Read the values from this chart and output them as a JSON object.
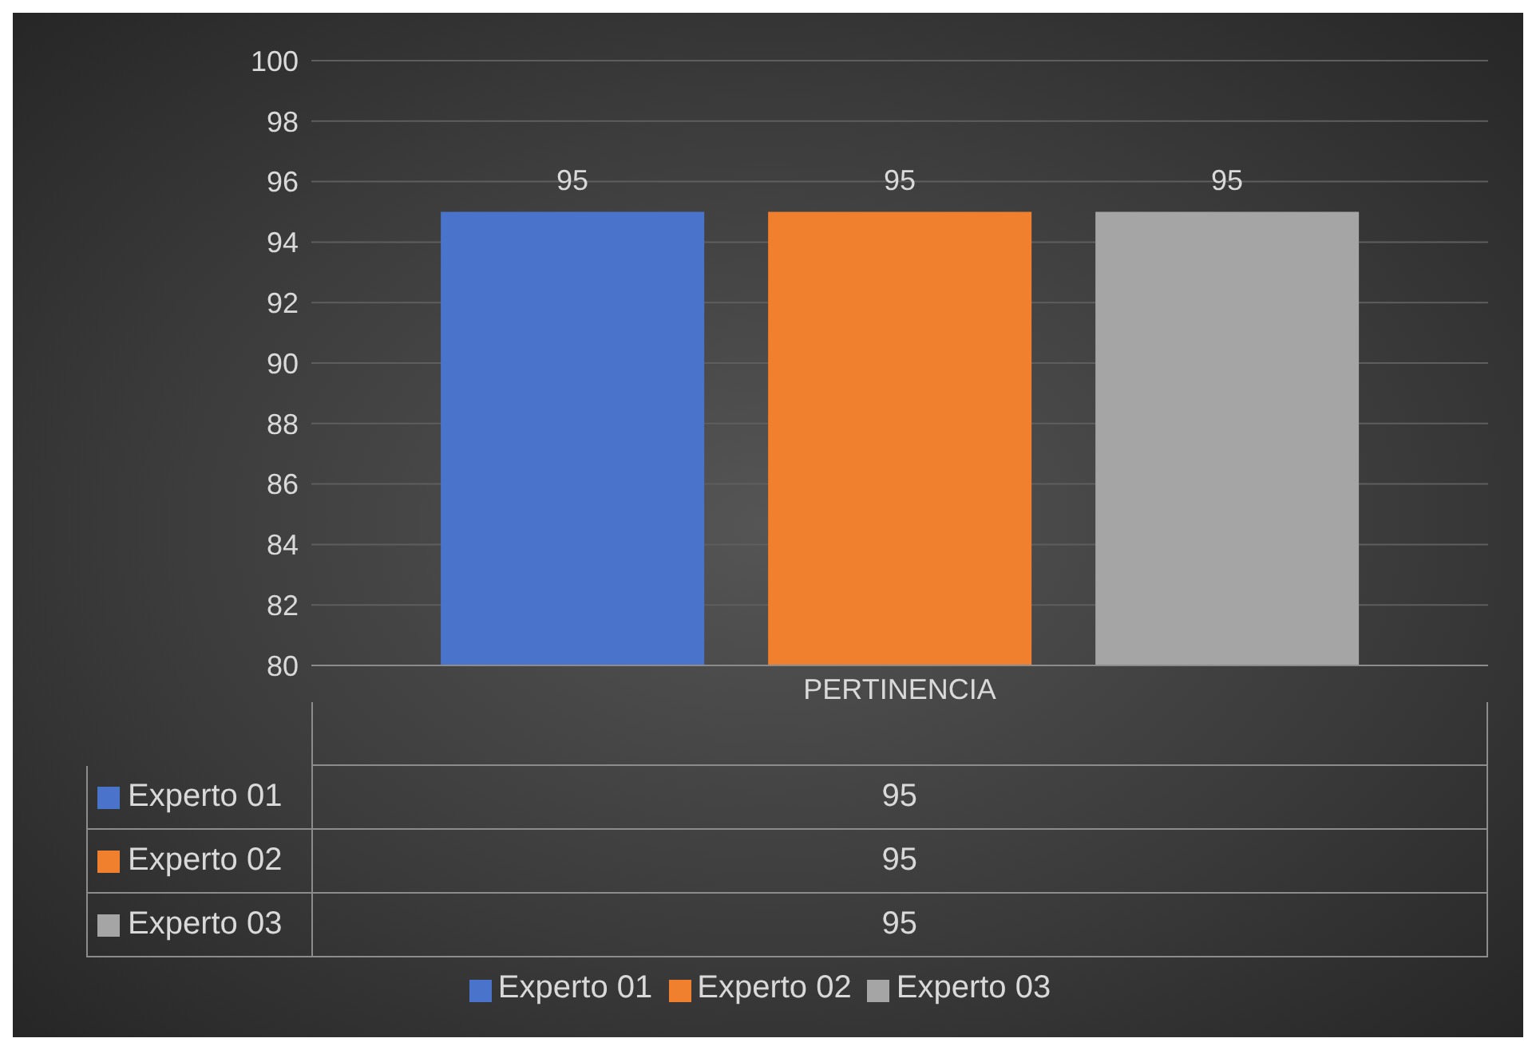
{
  "chart_data": {
    "type": "bar",
    "categories": [
      "PERTINENCIA"
    ],
    "series": [
      {
        "name": "Experto 01",
        "color": "#4a74cc",
        "values": [
          95
        ],
        "value_labels": [
          "95"
        ]
      },
      {
        "name": "Experto 02",
        "color": "#f07f2e",
        "values": [
          95
        ],
        "value_labels": [
          "95"
        ]
      },
      {
        "name": "Experto 03",
        "color": "#a5a5a5",
        "values": [
          95
        ],
        "value_labels": [
          "95"
        ]
      }
    ],
    "ylim": [
      80,
      100
    ],
    "yticks": [
      80,
      82,
      84,
      86,
      88,
      90,
      92,
      94,
      96,
      98,
      100
    ],
    "grid": "y",
    "legend": "bottom",
    "data_labels": true
  }
}
